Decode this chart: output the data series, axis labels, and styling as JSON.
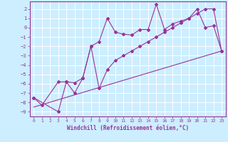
{
  "title": "",
  "xlabel": "Windchill (Refroidissement éolien,°C)",
  "bg_color": "#cceeff",
  "grid_color": "#ffffff",
  "line_color": "#993399",
  "xlim": [
    -0.5,
    23.5
  ],
  "ylim": [
    -9.5,
    2.8
  ],
  "xticks": [
    0,
    1,
    2,
    3,
    4,
    5,
    6,
    7,
    8,
    9,
    10,
    11,
    12,
    13,
    14,
    15,
    16,
    17,
    18,
    19,
    20,
    21,
    22,
    23
  ],
  "yticks": [
    2,
    1,
    0,
    -1,
    -2,
    -3,
    -4,
    -5,
    -6,
    -7,
    -8,
    -9
  ],
  "line1_x": [
    0,
    1,
    3,
    4,
    5,
    6,
    7,
    8,
    9,
    10,
    11,
    12,
    13,
    14,
    15,
    16,
    17,
    18,
    19,
    20,
    21,
    22,
    23
  ],
  "line1_y": [
    -7.5,
    -8.3,
    -5.8,
    -5.8,
    -5.9,
    -5.4,
    -2.0,
    -1.5,
    1.0,
    -0.5,
    -0.7,
    -0.8,
    -0.2,
    -0.2,
    2.5,
    -0.2,
    0.4,
    0.7,
    1.0,
    2.0,
    0.0,
    0.2,
    -2.5
  ],
  "line2_x": [
    0,
    3,
    4,
    5,
    6,
    7,
    8,
    9,
    10,
    11,
    12,
    13,
    14,
    15,
    16,
    17,
    18,
    19,
    20,
    21,
    22,
    23
  ],
  "line2_y": [
    -7.5,
    -9.0,
    -5.8,
    -7.0,
    -5.4,
    -2.0,
    -6.5,
    -4.5,
    -3.5,
    -3.0,
    -2.5,
    -2.0,
    -1.5,
    -1.0,
    -0.5,
    0.0,
    0.5,
    1.0,
    1.5,
    2.0,
    2.0,
    -2.5
  ],
  "line3_x": [
    0,
    23
  ],
  "line3_y": [
    -8.5,
    -2.5
  ]
}
